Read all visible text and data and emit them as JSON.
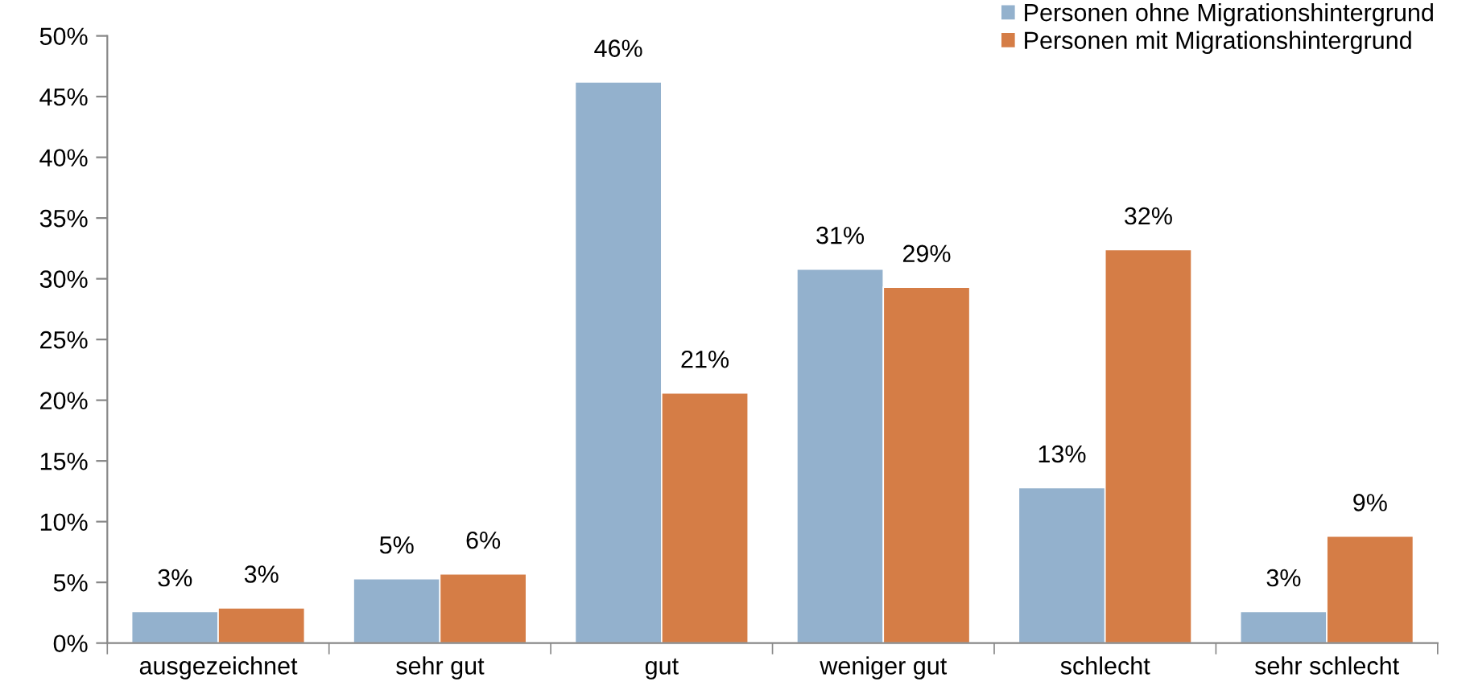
{
  "chart_data": {
    "type": "bar",
    "categories": [
      "ausgezeichnet",
      "sehr gut",
      "gut",
      "weniger gut",
      "schlecht",
      "sehr schlecht"
    ],
    "series": [
      {
        "name": "Personen ohne Migrationshintergrund",
        "color": "#93b1cd",
        "values": [
          2.6,
          5.3,
          46.2,
          30.8,
          12.8,
          2.6
        ],
        "value_labels": [
          "3%",
          "5%",
          "46%",
          "31%",
          "13%",
          "3%"
        ]
      },
      {
        "name": "Personen mit Migrationshintergrund",
        "color": "#d57d46",
        "values": [
          2.9,
          5.7,
          20.6,
          29.3,
          32.4,
          8.8
        ],
        "value_labels": [
          "3%",
          "6%",
          "21%",
          "29%",
          "32%",
          "9%"
        ]
      }
    ],
    "ylim": [
      0,
      50
    ],
    "yticks": [
      {
        "value": 0,
        "label": "0%"
      },
      {
        "value": 5,
        "label": "5%"
      },
      {
        "value": 10,
        "label": "10%"
      },
      {
        "value": 15,
        "label": "15%"
      },
      {
        "value": 20,
        "label": "20%"
      },
      {
        "value": 25,
        "label": "25%"
      },
      {
        "value": 30,
        "label": "30%"
      },
      {
        "value": 35,
        "label": "35%"
      },
      {
        "value": 40,
        "label": "40%"
      },
      {
        "value": 45,
        "label": "45%"
      },
      {
        "value": 50,
        "label": "50%"
      }
    ],
    "grid": false,
    "legend": "top right"
  }
}
